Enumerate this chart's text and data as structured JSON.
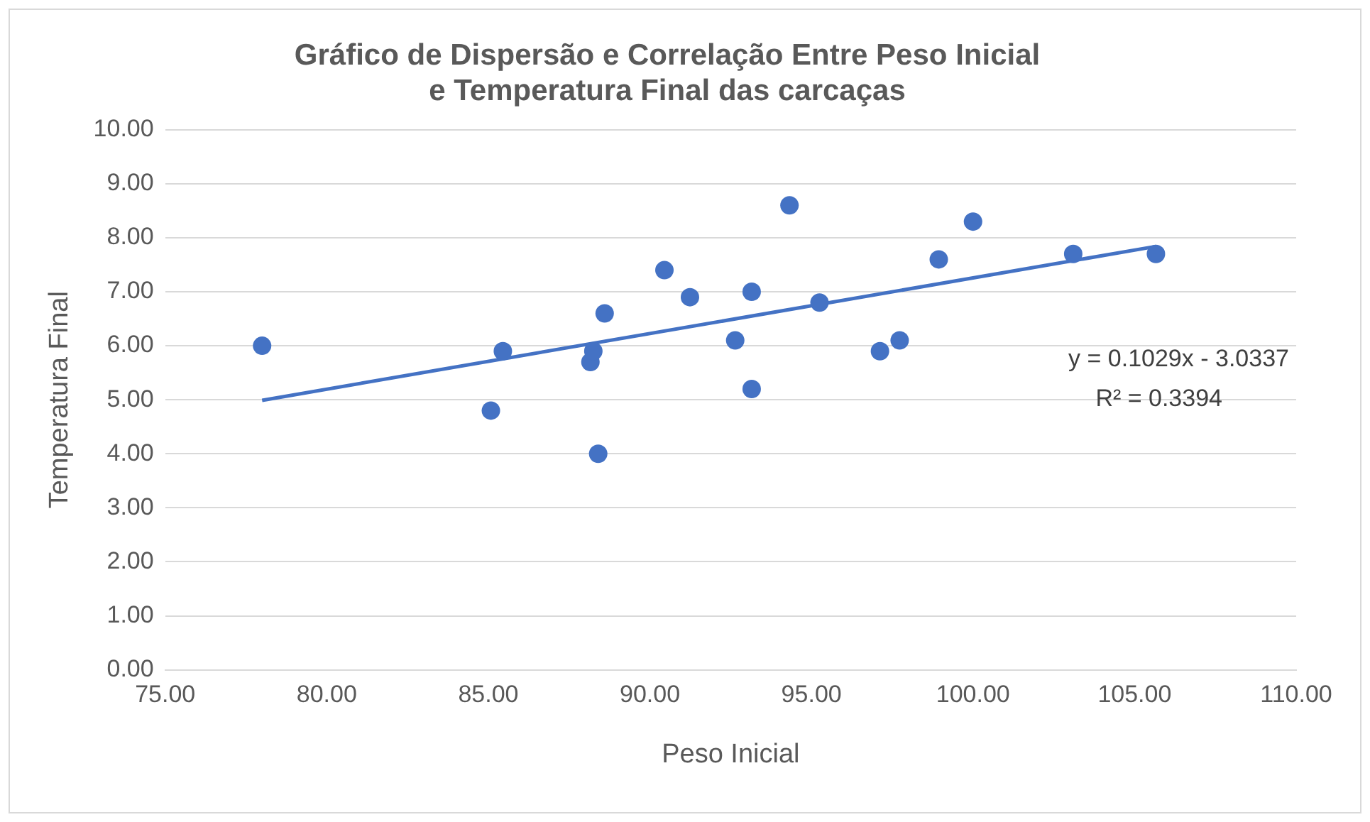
{
  "chart_data": {
    "type": "scatter",
    "title": "Gráfico de Dispersão e Correlação Entre Peso Inicial e Temperatura Final das carcaças",
    "xlabel": "Peso Inicial",
    "ylabel": "Temperatura Final",
    "x": [
      78.0,
      85.45,
      85.08,
      88.16,
      88.25,
      88.4,
      88.6,
      90.45,
      91.24,
      92.64,
      93.15,
      93.15,
      94.32,
      95.25,
      97.12,
      97.73,
      98.94,
      100.0,
      103.1,
      105.66
    ],
    "series": [
      {
        "type": "scatter",
        "color": "#4472c4",
        "marker": "circle",
        "values": [
          6.0,
          5.9,
          4.8,
          5.7,
          5.9,
          4.0,
          6.6,
          7.4,
          6.9,
          6.1,
          7.0,
          5.2,
          8.6,
          6.8,
          5.9,
          6.1,
          7.6,
          8.3,
          7.7,
          7.7
        ]
      },
      {
        "type": "line",
        "color": "#4472c4",
        "marker": "none",
        "line_style": "solid",
        "x": [
          78.0,
          105.66
        ],
        "values": [
          4.99,
          7.84
        ]
      }
    ],
    "xlim": [
      75,
      110
    ],
    "xticks": [
      {
        "value": 75,
        "label": "75.00"
      },
      {
        "value": 80,
        "label": "80.00"
      },
      {
        "value": 85,
        "label": "85.00"
      },
      {
        "value": 90,
        "label": "90.00"
      },
      {
        "value": 95,
        "label": "95.00"
      },
      {
        "value": 100,
        "label": "100.00"
      },
      {
        "value": 105,
        "label": "105.00"
      },
      {
        "value": 110,
        "label": "110.00"
      }
    ],
    "ylim": [
      0,
      10
    ],
    "yticks": [
      {
        "value": 0,
        "label": "0.00"
      },
      {
        "value": 1,
        "label": "1.00"
      },
      {
        "value": 2,
        "label": "2.00"
      },
      {
        "value": 3,
        "label": "3.00"
      },
      {
        "value": 4,
        "label": "4.00"
      },
      {
        "value": 5,
        "label": "5.00"
      },
      {
        "value": 6,
        "label": "6.00"
      },
      {
        "value": 7,
        "label": "7.00"
      },
      {
        "value": 8,
        "label": "8.00"
      },
      {
        "value": 9,
        "label": "9.00"
      },
      {
        "value": 10,
        "label": "10.00"
      }
    ],
    "grid": "y",
    "legend": false,
    "annotations": [
      "y = 0.1029x - 3.0337",
      "R² = 0.3394"
    ]
  }
}
